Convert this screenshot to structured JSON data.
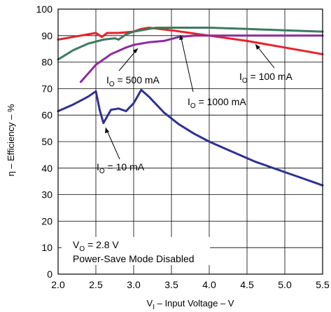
{
  "chart_data": {
    "type": "line",
    "xlabel_main": "V",
    "xlabel_sub": "I",
    "xlabel_rest": " – Input Voltage – V",
    "ylabel": "η – Efficiency – %",
    "xlim": [
      2.0,
      5.5
    ],
    "ylim": [
      0,
      100
    ],
    "x_ticks": [
      "2.0",
      "2.5",
      "3.0",
      "3.5",
      "4.0",
      "4.5",
      "5.0",
      "5.5"
    ],
    "y_ticks": [
      "0",
      "10",
      "20",
      "30",
      "40",
      "50",
      "60",
      "70",
      "80",
      "90",
      "100"
    ],
    "grid": true,
    "series": [
      {
        "name": "IO = 100 mA",
        "label_main": "I",
        "label_sub": "O",
        "label_rest": " = 100 mA",
        "color": "#e8212b",
        "points": [
          [
            2.0,
            88.5
          ],
          [
            2.2,
            89.5
          ],
          [
            2.4,
            90.5
          ],
          [
            2.5,
            91
          ],
          [
            2.58,
            89.5
          ],
          [
            2.65,
            91
          ],
          [
            2.8,
            91
          ],
          [
            3.0,
            91.5
          ],
          [
            3.1,
            92.5
          ],
          [
            3.2,
            93
          ],
          [
            3.5,
            92
          ],
          [
            4.0,
            90
          ],
          [
            4.5,
            88
          ],
          [
            5.0,
            85.5
          ],
          [
            5.5,
            83
          ]
        ]
      },
      {
        "name": "IO = 500 mA",
        "label_main": "I",
        "label_sub": "O",
        "label_rest": " = 500 mA",
        "color": "#3d7a5e",
        "points": [
          [
            2.0,
            81
          ],
          [
            2.2,
            84.5
          ],
          [
            2.4,
            87
          ],
          [
            2.6,
            88.5
          ],
          [
            2.75,
            89
          ],
          [
            2.8,
            88.5
          ],
          [
            2.9,
            90.5
          ],
          [
            3.0,
            91.5
          ],
          [
            3.2,
            92.5
          ],
          [
            3.3,
            93
          ],
          [
            4.0,
            93
          ],
          [
            4.5,
            92.5
          ],
          [
            5.0,
            92
          ],
          [
            5.5,
            91.5
          ]
        ]
      },
      {
        "name": "IO = 1000 mA",
        "label_main": "I",
        "label_sub": "O",
        "label_rest": " = 1000 mA",
        "color": "#8b2c9c",
        "points": [
          [
            2.3,
            72.5
          ],
          [
            2.5,
            79
          ],
          [
            2.7,
            83
          ],
          [
            2.9,
            85.5
          ],
          [
            3.0,
            86.5
          ],
          [
            3.2,
            87.5
          ],
          [
            3.4,
            88
          ],
          [
            3.6,
            89.5
          ],
          [
            3.8,
            90
          ],
          [
            4.0,
            90
          ],
          [
            5.0,
            90
          ],
          [
            5.5,
            90
          ]
        ]
      },
      {
        "name": "IO = 10 mA",
        "label_main": "I",
        "label_sub": "O",
        "label_rest": " = 10 mA",
        "color": "#2e3192",
        "points": [
          [
            2.0,
            61.5
          ],
          [
            2.2,
            64
          ],
          [
            2.4,
            67
          ],
          [
            2.5,
            69
          ],
          [
            2.55,
            62
          ],
          [
            2.6,
            57
          ],
          [
            2.7,
            62
          ],
          [
            2.8,
            62.5
          ],
          [
            2.9,
            61.5
          ],
          [
            3.0,
            64.5
          ],
          [
            3.1,
            69.5
          ],
          [
            3.2,
            67
          ],
          [
            3.4,
            61
          ],
          [
            3.6,
            56.5
          ],
          [
            3.8,
            53
          ],
          [
            4.0,
            50
          ],
          [
            4.2,
            47.5
          ],
          [
            4.4,
            45
          ],
          [
            4.6,
            42.5
          ],
          [
            4.8,
            40.5
          ],
          [
            5.0,
            38.5
          ],
          [
            5.2,
            36.5
          ],
          [
            5.4,
            34.5
          ],
          [
            5.5,
            33.5
          ]
        ]
      }
    ],
    "annotation": {
      "line1_main": "V",
      "line1_sub": "O",
      "line1_rest": " = 2.8 V",
      "line2": "Power-Save Mode Disabled"
    }
  },
  "colors": {
    "grid": "#000000",
    "frame": "#000000",
    "text": "#000000"
  }
}
